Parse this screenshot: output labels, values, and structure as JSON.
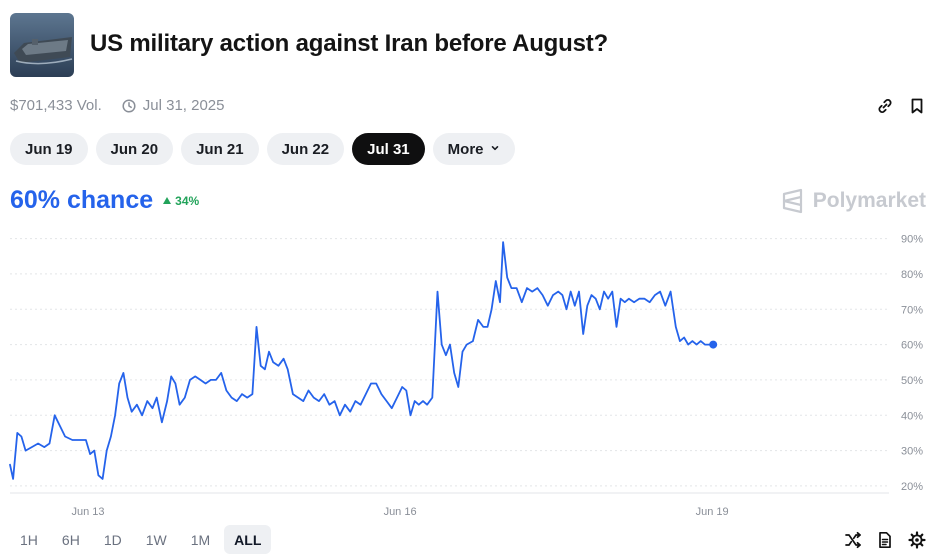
{
  "market": {
    "title": "US military action against Iran before August?",
    "volume": "$701,433 Vol.",
    "end_date": "Jul 31, 2025"
  },
  "date_tabs": [
    {
      "label": "Jun 19",
      "active": false
    },
    {
      "label": "Jun 20",
      "active": false
    },
    {
      "label": "Jun 21",
      "active": false
    },
    {
      "label": "Jun 22",
      "active": false
    },
    {
      "label": "Jul 31",
      "active": true
    },
    {
      "label": "More",
      "active": false
    }
  ],
  "probability": {
    "label": "60% chance",
    "change": "34%",
    "change_direction": "up"
  },
  "brand": "Polymarket",
  "colors": {
    "line": "#2563eb",
    "up": "#22a35a",
    "active_pill": "#0f0f10"
  },
  "time_ranges": [
    {
      "label": "1H",
      "active": false
    },
    {
      "label": "6H",
      "active": false
    },
    {
      "label": "1D",
      "active": false
    },
    {
      "label": "1W",
      "active": false
    },
    {
      "label": "1M",
      "active": false
    },
    {
      "label": "ALL",
      "active": true
    }
  ],
  "chart_data": {
    "type": "line",
    "ylim": [
      18,
      93
    ],
    "y_ticks": [
      20,
      30,
      40,
      50,
      60,
      70,
      80,
      90
    ],
    "y_tick_labels": [
      "20%",
      "30%",
      "40%",
      "50%",
      "60%",
      "70%",
      "80%",
      "90%"
    ],
    "x_ticks": [
      {
        "x": 3,
        "label": "Jun 13"
      },
      {
        "x": 6,
        "label": "Jun 16"
      },
      {
        "x": 9,
        "label": "Jun 19"
      }
    ],
    "xlim": [
      2.25,
      10.7
    ],
    "grid": true,
    "series": [
      {
        "values": [
          [
            2.25,
            26
          ],
          [
            2.28,
            22
          ],
          [
            2.32,
            35
          ],
          [
            2.36,
            34
          ],
          [
            2.4,
            30
          ],
          [
            2.46,
            31
          ],
          [
            2.52,
            32
          ],
          [
            2.58,
            31
          ],
          [
            2.63,
            32
          ],
          [
            2.68,
            40
          ],
          [
            2.73,
            37
          ],
          [
            2.78,
            34
          ],
          [
            2.85,
            33
          ],
          [
            2.92,
            33
          ],
          [
            2.98,
            33
          ],
          [
            3.02,
            29
          ],
          [
            3.06,
            30
          ],
          [
            3.1,
            23
          ],
          [
            3.14,
            22
          ],
          [
            3.18,
            30
          ],
          [
            3.22,
            34
          ],
          [
            3.26,
            40
          ],
          [
            3.3,
            49
          ],
          [
            3.34,
            52
          ],
          [
            3.38,
            45
          ],
          [
            3.42,
            41
          ],
          [
            3.47,
            43
          ],
          [
            3.52,
            40
          ],
          [
            3.57,
            44
          ],
          [
            3.62,
            42
          ],
          [
            3.66,
            45
          ],
          [
            3.71,
            38
          ],
          [
            3.76,
            44
          ],
          [
            3.8,
            51
          ],
          [
            3.84,
            49
          ],
          [
            3.88,
            43
          ],
          [
            3.93,
            45
          ],
          [
            3.98,
            50
          ],
          [
            4.03,
            51
          ],
          [
            4.08,
            50
          ],
          [
            4.13,
            49
          ],
          [
            4.18,
            50
          ],
          [
            4.23,
            50
          ],
          [
            4.28,
            52
          ],
          [
            4.33,
            47
          ],
          [
            4.38,
            45
          ],
          [
            4.43,
            44
          ],
          [
            4.48,
            46
          ],
          [
            4.53,
            45
          ],
          [
            4.58,
            46
          ],
          [
            4.62,
            65
          ],
          [
            4.66,
            54
          ],
          [
            4.7,
            53
          ],
          [
            4.74,
            58
          ],
          [
            4.78,
            55
          ],
          [
            4.83,
            54
          ],
          [
            4.88,
            56
          ],
          [
            4.92,
            53
          ],
          [
            4.97,
            46
          ],
          [
            5.02,
            45
          ],
          [
            5.07,
            44
          ],
          [
            5.12,
            47
          ],
          [
            5.17,
            45
          ],
          [
            5.22,
            44
          ],
          [
            5.27,
            46
          ],
          [
            5.32,
            43
          ],
          [
            5.37,
            44
          ],
          [
            5.42,
            40
          ],
          [
            5.47,
            43
          ],
          [
            5.52,
            41
          ],
          [
            5.57,
            44
          ],
          [
            5.62,
            43
          ],
          [
            5.67,
            46
          ],
          [
            5.72,
            49
          ],
          [
            5.77,
            49
          ],
          [
            5.82,
            46
          ],
          [
            5.87,
            44
          ],
          [
            5.92,
            42
          ],
          [
            5.97,
            45
          ],
          [
            6.02,
            48
          ],
          [
            6.06,
            47
          ],
          [
            6.1,
            40
          ],
          [
            6.14,
            44
          ],
          [
            6.18,
            43
          ],
          [
            6.22,
            44
          ],
          [
            6.26,
            43
          ],
          [
            6.31,
            45
          ],
          [
            6.36,
            75
          ],
          [
            6.4,
            60
          ],
          [
            6.44,
            57
          ],
          [
            6.48,
            60
          ],
          [
            6.52,
            52
          ],
          [
            6.56,
            48
          ],
          [
            6.6,
            58
          ],
          [
            6.64,
            60
          ],
          [
            6.7,
            61
          ],
          [
            6.75,
            67
          ],
          [
            6.8,
            65
          ],
          [
            6.84,
            65
          ],
          [
            6.88,
            70
          ],
          [
            6.92,
            78
          ],
          [
            6.96,
            72
          ],
          [
            6.99,
            89
          ],
          [
            7.03,
            79
          ],
          [
            7.07,
            76
          ],
          [
            7.12,
            76
          ],
          [
            7.17,
            72
          ],
          [
            7.22,
            76
          ],
          [
            7.27,
            75
          ],
          [
            7.32,
            76
          ],
          [
            7.37,
            74
          ],
          [
            7.42,
            71
          ],
          [
            7.47,
            74
          ],
          [
            7.52,
            75
          ],
          [
            7.56,
            74
          ],
          [
            7.6,
            70
          ],
          [
            7.64,
            75
          ],
          [
            7.68,
            71
          ],
          [
            7.72,
            75
          ],
          [
            7.76,
            63
          ],
          [
            7.8,
            71
          ],
          [
            7.84,
            74
          ],
          [
            7.88,
            73
          ],
          [
            7.92,
            70
          ],
          [
            7.96,
            75
          ],
          [
            8.0,
            73
          ],
          [
            8.04,
            75
          ],
          [
            8.08,
            65
          ],
          [
            8.12,
            73
          ],
          [
            8.16,
            72
          ],
          [
            8.2,
            73
          ],
          [
            8.25,
            72
          ],
          [
            8.3,
            73
          ],
          [
            8.35,
            73
          ],
          [
            8.4,
            72
          ],
          [
            8.45,
            74
          ],
          [
            8.5,
            75
          ],
          [
            8.55,
            71
          ],
          [
            8.6,
            75
          ],
          [
            8.65,
            65
          ],
          [
            8.69,
            61
          ],
          [
            8.73,
            62
          ],
          [
            8.77,
            60
          ],
          [
            8.81,
            61
          ],
          [
            8.85,
            60
          ],
          [
            8.89,
            61
          ],
          [
            8.93,
            60
          ],
          [
            8.97,
            60
          ],
          [
            9.01,
            60
          ]
        ]
      }
    ]
  }
}
